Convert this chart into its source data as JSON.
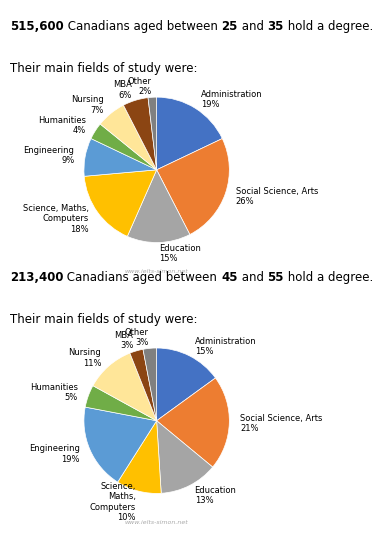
{
  "title1_line1": [
    {
      "text": "515,600",
      "bold": true
    },
    {
      "text": " Canadians aged between ",
      "bold": false
    },
    {
      "text": "25",
      "bold": true
    },
    {
      "text": " and ",
      "bold": false
    },
    {
      "text": "35",
      "bold": true
    },
    {
      "text": " hold a degree.",
      "bold": false
    }
  ],
  "title1_line2": "Their main fields of study were:",
  "title2_line1": [
    {
      "text": "213,400",
      "bold": true
    },
    {
      "text": " Canadians aged between ",
      "bold": false
    },
    {
      "text": "45",
      "bold": true
    },
    {
      "text": " and ",
      "bold": false
    },
    {
      "text": "55",
      "bold": true
    },
    {
      "text": " hold a degree.",
      "bold": false
    }
  ],
  "title2_line2": "Their main fields of study were:",
  "pie1_values": [
    19,
    26,
    15,
    18,
    9,
    4,
    7,
    6,
    2
  ],
  "pie1_labels": [
    "Administration\n19%",
    "Social Science, Arts\n26%",
    "Education\n15%",
    "Science, Maths,\nComputers\n18%",
    "Engineering\n9%",
    "Humanities\n4%",
    "Nursing\n7%",
    "MBA\n6%",
    "Other\n2%"
  ],
  "pie1_colors": [
    "#4472C4",
    "#ED7D31",
    "#A5A5A5",
    "#FFC000",
    "#5B9BD5",
    "#70AD47",
    "#FFE699",
    "#8B4513",
    "#808080"
  ],
  "pie2_values": [
    15,
    21,
    13,
    10,
    19,
    5,
    11,
    3,
    3
  ],
  "pie2_labels": [
    "Administration\n15%",
    "Social Science, Arts\n21%",
    "Education\n13%",
    "Science,\nMaths,\nComputers\n10%",
    "Engineering\n19%",
    "Humanities\n5%",
    "Nursing\n11%",
    "MBA\n3%",
    "Other\n3%"
  ],
  "pie2_colors": [
    "#4472C4",
    "#ED7D31",
    "#A5A5A5",
    "#FFC000",
    "#5B9BD5",
    "#70AD47",
    "#FFE699",
    "#8B4513",
    "#808080"
  ],
  "watermark": "www.ielts-simon.net",
  "bg_color": "#FFFFFF",
  "fontsize_title": 8.5,
  "fontsize_pie": 6.0
}
